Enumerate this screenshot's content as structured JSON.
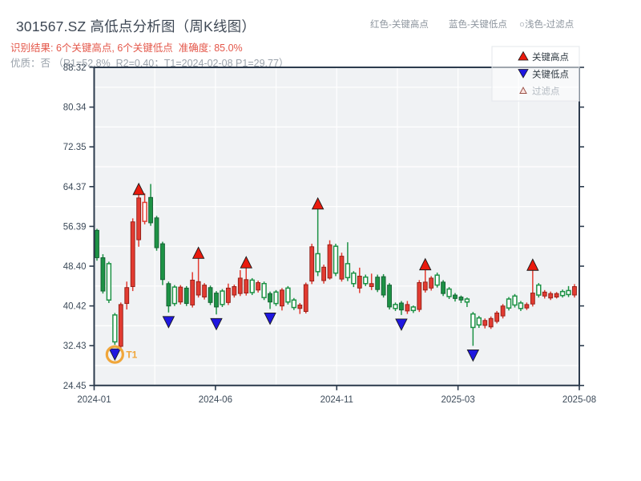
{
  "header": {
    "title": "301567.SZ 高低点分析图（周K线图）",
    "result_line": "识别结果: 6个关键高点, 6个关键低点  准确度: 85.0%",
    "quality_line": "优质：否 （R1=52.8%  R2=0.40；T1=2024-02-08 P1=29.77）",
    "note_high": "红色-关键高点",
    "note_low": "蓝色-关键低点",
    "note_filter": "○浅色-过滤点"
  },
  "chart_data": {
    "type": "candlestick",
    "title": "301567.SZ 高低点分析图（周K线图）",
    "period": "weekly",
    "x_ticks": [
      "2024-01",
      "2024-06",
      "2024-11",
      "2025-03",
      "2025-08"
    ],
    "y_ticks": [
      "88.32",
      "80.34",
      "72.35",
      "64.37",
      "56.39",
      "48.40",
      "40.42",
      "32.43",
      "24.45"
    ],
    "ylim": [
      24.45,
      88.32
    ],
    "grid": "light-on-gray",
    "legend": {
      "high_label": "关键高点",
      "low_label": "关键低点",
      "filter_label": "过滤点",
      "position": "top-right"
    },
    "candles": [
      [
        55.6,
        55.9,
        49.5,
        50.1,
        "g"
      ],
      [
        50.1,
        50.8,
        42.9,
        43.4,
        "g"
      ],
      [
        48.9,
        49.3,
        41.0,
        41.6,
        "gh"
      ],
      [
        38.6,
        39.0,
        32.6,
        33.2,
        "gh"
      ],
      [
        32.3,
        41.1,
        31.6,
        40.7,
        "r"
      ],
      [
        40.9,
        45.3,
        39.7,
        44.1,
        "r"
      ],
      [
        44.3,
        58.0,
        43.4,
        57.3,
        "r"
      ],
      [
        53.7,
        63.4,
        52.3,
        62.1,
        "r"
      ],
      [
        57.4,
        63.0,
        56.8,
        61.2,
        "rh"
      ],
      [
        62.2,
        64.9,
        56.5,
        57.1,
        "g"
      ],
      [
        58.1,
        58.5,
        51.5,
        52.1,
        "g"
      ],
      [
        52.9,
        53.3,
        44.6,
        45.7,
        "g"
      ],
      [
        44.9,
        45.3,
        39.1,
        40.4,
        "g"
      ],
      [
        44.2,
        44.6,
        40.4,
        40.9,
        "gh"
      ],
      [
        41.2,
        44.6,
        40.7,
        44.2,
        "r"
      ],
      [
        44.0,
        44.4,
        40.4,
        40.9,
        "g"
      ],
      [
        40.6,
        47.2,
        40.1,
        45.6,
        "r"
      ],
      [
        42.6,
        50.6,
        42.1,
        45.3,
        "r"
      ],
      [
        42.2,
        45.0,
        41.7,
        44.6,
        "r"
      ],
      [
        44.1,
        44.5,
        40.6,
        41.1,
        "g"
      ],
      [
        43.0,
        43.4,
        38.7,
        40.2,
        "g"
      ],
      [
        43.4,
        43.8,
        40.2,
        40.7,
        "gh"
      ],
      [
        41.1,
        44.9,
        40.6,
        44.0,
        "r"
      ],
      [
        42.6,
        44.7,
        42.1,
        44.3,
        "r"
      ],
      [
        42.9,
        47.6,
        42.4,
        46.0,
        "r"
      ],
      [
        43.0,
        48.7,
        42.5,
        45.7,
        "r"
      ],
      [
        45.6,
        46.0,
        42.6,
        43.1,
        "gh"
      ],
      [
        43.6,
        45.5,
        43.1,
        45.1,
        "r"
      ],
      [
        44.9,
        45.3,
        41.6,
        42.1,
        "gh"
      ],
      [
        42.9,
        43.3,
        39.8,
        41.2,
        "g"
      ],
      [
        43.2,
        43.6,
        40.4,
        40.9,
        "gh"
      ],
      [
        40.4,
        44.0,
        39.5,
        43.6,
        "r"
      ],
      [
        44.0,
        44.4,
        40.7,
        41.2,
        "gh"
      ],
      [
        41.6,
        42.0,
        39.6,
        40.1,
        "gh"
      ],
      [
        39.9,
        41.0,
        38.8,
        40.6,
        "r"
      ],
      [
        39.3,
        45.1,
        38.9,
        44.7,
        "r"
      ],
      [
        45.4,
        52.9,
        44.8,
        52.3,
        "r"
      ],
      [
        50.9,
        60.5,
        46.4,
        47.3,
        "gh"
      ],
      [
        45.5,
        48.7,
        44.9,
        48.2,
        "r"
      ],
      [
        46.0,
        53.6,
        45.7,
        52.7,
        "r"
      ],
      [
        52.4,
        52.9,
        46.4,
        47.0,
        "gh"
      ],
      [
        45.8,
        51.1,
        45.3,
        50.4,
        "r"
      ],
      [
        48.9,
        53.2,
        45.4,
        46.1,
        "gh"
      ],
      [
        47.0,
        47.4,
        44.2,
        44.9,
        "gh"
      ],
      [
        44.0,
        48.1,
        43.0,
        46.4,
        "r"
      ],
      [
        46.2,
        46.7,
        44.4,
        44.9,
        "gh"
      ],
      [
        44.3,
        46.9,
        43.6,
        44.9,
        "r"
      ],
      [
        46.2,
        46.7,
        43.2,
        43.7,
        "g"
      ],
      [
        46.3,
        46.8,
        42.1,
        42.6,
        "g"
      ],
      [
        44.6,
        45.0,
        39.7,
        40.2,
        "g"
      ],
      [
        40.7,
        41.1,
        39.4,
        39.9,
        "gh"
      ],
      [
        41.0,
        41.4,
        38.6,
        39.6,
        "g"
      ],
      [
        39.4,
        41.4,
        38.8,
        40.7,
        "r"
      ],
      [
        40.2,
        40.5,
        39.0,
        39.5,
        "gh"
      ],
      [
        39.7,
        45.6,
        39.2,
        45.1,
        "r"
      ],
      [
        43.6,
        48.3,
        43.1,
        45.2,
        "r"
      ],
      [
        44.0,
        46.4,
        43.5,
        46.0,
        "r"
      ],
      [
        46.6,
        47.1,
        44.1,
        44.6,
        "gh"
      ],
      [
        45.2,
        45.6,
        42.4,
        42.9,
        "g"
      ],
      [
        43.8,
        44.2,
        41.8,
        42.3,
        "gh"
      ],
      [
        42.6,
        43.0,
        41.3,
        41.9,
        "g"
      ],
      [
        42.2,
        42.5,
        41.0,
        41.6,
        "g"
      ],
      [
        41.8,
        42.1,
        40.2,
        41.2,
        "gh"
      ],
      [
        38.8,
        39.2,
        32.4,
        36.1,
        "gh"
      ],
      [
        38.0,
        38.4,
        36.0,
        36.6,
        "gh"
      ],
      [
        36.5,
        37.9,
        35.9,
        37.5,
        "r"
      ],
      [
        36.2,
        38.3,
        35.8,
        37.9,
        "r"
      ],
      [
        37.3,
        39.4,
        36.9,
        39.0,
        "r"
      ],
      [
        38.4,
        40.8,
        37.9,
        40.4,
        "r"
      ],
      [
        41.8,
        42.2,
        39.5,
        40.0,
        "gh"
      ],
      [
        42.4,
        42.8,
        40.1,
        40.6,
        "gh"
      ],
      [
        41.0,
        41.4,
        39.4,
        39.9,
        "gh"
      ],
      [
        40.0,
        41.1,
        39.6,
        40.7,
        "r"
      ],
      [
        40.8,
        48.2,
        40.3,
        43.0,
        "r"
      ],
      [
        44.6,
        45.0,
        42.1,
        42.6,
        "gh"
      ],
      [
        42.4,
        43.6,
        41.9,
        43.2,
        "r"
      ],
      [
        42.0,
        43.3,
        41.6,
        42.9,
        "r"
      ],
      [
        42.2,
        43.2,
        41.9,
        42.9,
        "r"
      ],
      [
        43.3,
        43.7,
        42.1,
        42.5,
        "gh"
      ],
      [
        43.5,
        44.4,
        42.2,
        42.7,
        "gh"
      ],
      [
        42.6,
        44.8,
        42.1,
        44.3,
        "r"
      ]
    ],
    "candle_format": "[open, high, low, close, style] style: r=red solid, rh=red hollow, g=green solid, gh=green hollow",
    "key_high_indices": [
      7,
      17,
      25,
      37,
      55,
      73
    ],
    "key_low_indices": [
      3,
      12,
      20,
      29,
      51,
      63
    ],
    "t1_annotation": {
      "label": "T1",
      "index": 3
    },
    "colors": {
      "red_candle": "#e23b31",
      "red_edge": "#8f1d15",
      "green_candle": "#1d9245",
      "green_edge": "#125c30",
      "hollow_fill": "#ffffff",
      "marker_high": "#ea1a0d",
      "marker_low": "#1f17e0",
      "marker_edge": "#1a1a1a",
      "filter_fill": "#fbe4e1",
      "filter_edge": "#9c544a",
      "t1_orange": "#f0a63a",
      "plot_bg": "#f0f2f4",
      "grid": "#ffffff",
      "spine": "#2c3b4d",
      "axis_label": "#3c4a59",
      "legend_text": "#2f3942",
      "legend_muted": "#b3bac1"
    }
  }
}
